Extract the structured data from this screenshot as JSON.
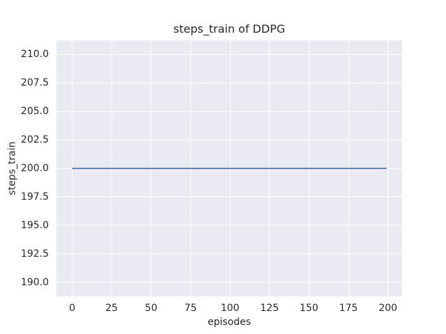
{
  "chart_data": {
    "type": "line",
    "title": "steps_train of DDPG",
    "xlabel": "episodes",
    "ylabel": "steps_train",
    "xlim": [
      -9.95,
      208.95
    ],
    "ylim": [
      188.75,
      211.25
    ],
    "grid": true,
    "legend": null,
    "xticks": {
      "values": [
        0,
        25,
        50,
        75,
        100,
        125,
        150,
        175,
        200
      ],
      "labels": [
        "0",
        "25",
        "50",
        "75",
        "100",
        "125",
        "150",
        "175",
        "200"
      ]
    },
    "yticks": {
      "values": [
        190,
        192.5,
        195,
        197.5,
        200,
        202.5,
        205,
        207.5,
        210
      ],
      "labels": [
        "190.0",
        "192.5",
        "195.0",
        "197.5",
        "200.0",
        "202.5",
        "205.0",
        "207.5",
        "210.0"
      ]
    },
    "series": [
      {
        "name": "steps_train",
        "x": [
          0,
          199
        ],
        "y": [
          200,
          200
        ]
      }
    ],
    "colors": {
      "line": "#4C72B0",
      "plot_background": "#EAEAF2",
      "gridline": "#FFFFFF",
      "text": "#262626",
      "figure_background": "#FFFFFF"
    }
  }
}
